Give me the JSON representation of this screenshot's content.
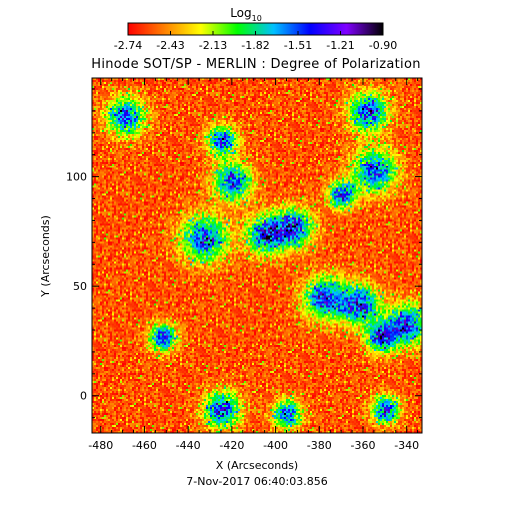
{
  "chart_data": {
    "type": "heatmap",
    "title": "Hinode SOT/SP - MERLIN : Degree of Polarization",
    "xlabel": "X (Arcseconds)",
    "ylabel": "Y (Arcseconds)",
    "xlim": [
      -484,
      -333
    ],
    "ylim": [
      -17,
      145
    ],
    "x_ticks": [
      -480,
      -460,
      -440,
      -420,
      -400,
      -380,
      -360,
      -340
    ],
    "y_ticks": [
      0,
      50,
      100
    ],
    "timestamp": "7-Nov-2017 06:40:03.856",
    "colorbar": {
      "label_main": "Log",
      "label_sub": "10",
      "min": -2.74,
      "max": -0.9,
      "tick_labels": [
        "-2.74",
        "-2.43",
        "-2.13",
        "-1.82",
        "-1.51",
        "-1.21",
        "-0.90"
      ],
      "colormap": "rainbow",
      "colors": [
        "#ff0000",
        "#ff8000",
        "#ffff00",
        "#00ff00",
        "#00c0ff",
        "#0000ff",
        "#8000ff",
        "#000000"
      ]
    },
    "hotspots": [
      {
        "x": -469,
        "y": 128
      },
      {
        "x": -425,
        "y": 117
      },
      {
        "x": -420,
        "y": 98
      },
      {
        "x": -433,
        "y": 72
      },
      {
        "x": -405,
        "y": 74
      },
      {
        "x": -392,
        "y": 77
      },
      {
        "x": -370,
        "y": 92
      },
      {
        "x": -355,
        "y": 103
      },
      {
        "x": -358,
        "y": 130
      },
      {
        "x": -378,
        "y": 45
      },
      {
        "x": -362,
        "y": 42
      },
      {
        "x": -352,
        "y": 27
      },
      {
        "x": -340,
        "y": 33
      },
      {
        "x": -452,
        "y": 27
      },
      {
        "x": -425,
        "y": -6
      },
      {
        "x": -395,
        "y": -8
      },
      {
        "x": -350,
        "y": -6
      }
    ]
  }
}
